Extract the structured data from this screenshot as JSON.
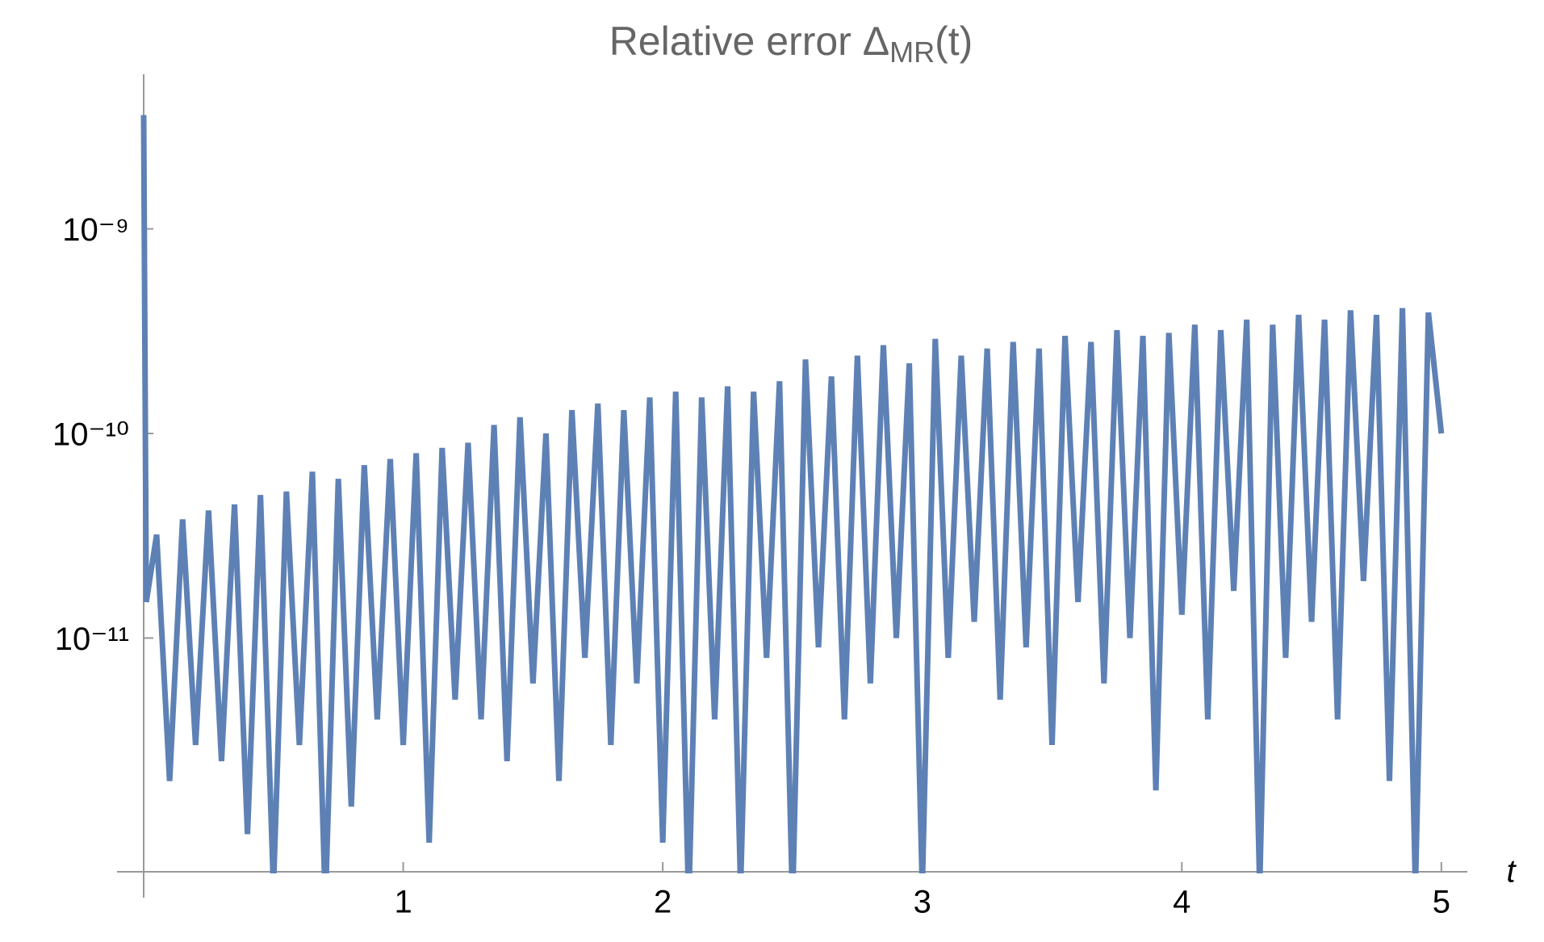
{
  "chart_data": {
    "type": "line",
    "title": [
      "Relative error Δ",
      "MR",
      "(t)"
    ],
    "xlabel": "t",
    "ylog": true,
    "xlim": [
      0,
      5.1
    ],
    "ylim": [
      7.2e-13,
      5.7e-09
    ],
    "xticks": [
      1,
      2,
      3,
      4,
      5
    ],
    "yticks": [
      {
        "value": 1e-11,
        "label": "10⁻¹¹"
      },
      {
        "value": 1e-10,
        "label": "10⁻¹⁰"
      },
      {
        "value": 1e-09,
        "label": "10⁻⁹"
      }
    ],
    "x": [
      0,
      0.01,
      0.05,
      0.1,
      0.15,
      0.2,
      0.25,
      0.3,
      0.35,
      0.4,
      0.45,
      0.5,
      0.55,
      0.6,
      0.65,
      0.7,
      0.75,
      0.8,
      0.85,
      0.9,
      0.95,
      1.0,
      1.05,
      1.1,
      1.15,
      1.2,
      1.25,
      1.3,
      1.35,
      1.4,
      1.45,
      1.5,
      1.55,
      1.6,
      1.65,
      1.7,
      1.75,
      1.8,
      1.85,
      1.9,
      1.95,
      2.0,
      2.05,
      2.1,
      2.15,
      2.2,
      2.25,
      2.3,
      2.35,
      2.4,
      2.45,
      2.5,
      2.55,
      2.6,
      2.65,
      2.7,
      2.75,
      2.8,
      2.85,
      2.9,
      2.95,
      3.0,
      3.05,
      3.1,
      3.15,
      3.2,
      3.25,
      3.3,
      3.35,
      3.4,
      3.45,
      3.5,
      3.55,
      3.6,
      3.65,
      3.7,
      3.75,
      3.8,
      3.85,
      3.9,
      3.95,
      4.0,
      4.05,
      4.1,
      4.15,
      4.2,
      4.25,
      4.3,
      4.35,
      4.4,
      4.45,
      4.5,
      4.55,
      4.6,
      4.65,
      4.7,
      4.75,
      4.8,
      4.85,
      4.9,
      4.95,
      5.0
    ],
    "series": [
      {
        "color": "#5e81b5",
        "values": [
          3.6e-09,
          1.5e-11,
          3.2e-11,
          2e-12,
          3.8e-11,
          3e-12,
          4.2e-11,
          2.5e-12,
          4.5e-11,
          1.1e-12,
          5e-11,
          6e-13,
          5.2e-11,
          3e-12,
          6.5e-11,
          5e-13,
          6e-11,
          1.5e-12,
          7e-11,
          4e-12,
          7.5e-11,
          3e-12,
          8e-11,
          1e-12,
          8.5e-11,
          5e-12,
          9e-11,
          4e-12,
          1.1e-10,
          2.5e-12,
          1.2e-10,
          6e-12,
          1e-10,
          2e-12,
          1.3e-10,
          8e-12,
          1.4e-10,
          3e-12,
          1.3e-10,
          6e-12,
          1.5e-10,
          1e-12,
          1.6e-10,
          5e-13,
          1.5e-10,
          4e-12,
          1.7e-10,
          6e-13,
          1.6e-10,
          8e-12,
          1.8e-10,
          5e-13,
          2.3e-10,
          9e-12,
          1.9e-10,
          4e-12,
          2.4e-10,
          6e-12,
          2.7e-10,
          1e-11,
          2.2e-10,
          6e-13,
          2.9e-10,
          8e-12,
          2.4e-10,
          1.2e-11,
          2.6e-10,
          5e-12,
          2.8e-10,
          9e-12,
          2.6e-10,
          3e-12,
          3e-10,
          1.5e-11,
          2.8e-10,
          6e-12,
          3.2e-10,
          1e-11,
          3e-10,
          1.8e-12,
          3.1e-10,
          1.3e-11,
          3.4e-10,
          4e-12,
          3.2e-10,
          1.7e-11,
          3.6e-10,
          6e-13,
          3.4e-10,
          8e-12,
          3.8e-10,
          1.2e-11,
          3.6e-10,
          4e-12,
          4e-10,
          1.9e-11,
          3.8e-10,
          2e-12,
          4.1e-10,
          6e-13,
          3.9e-10,
          1e-10
        ]
      }
    ]
  }
}
